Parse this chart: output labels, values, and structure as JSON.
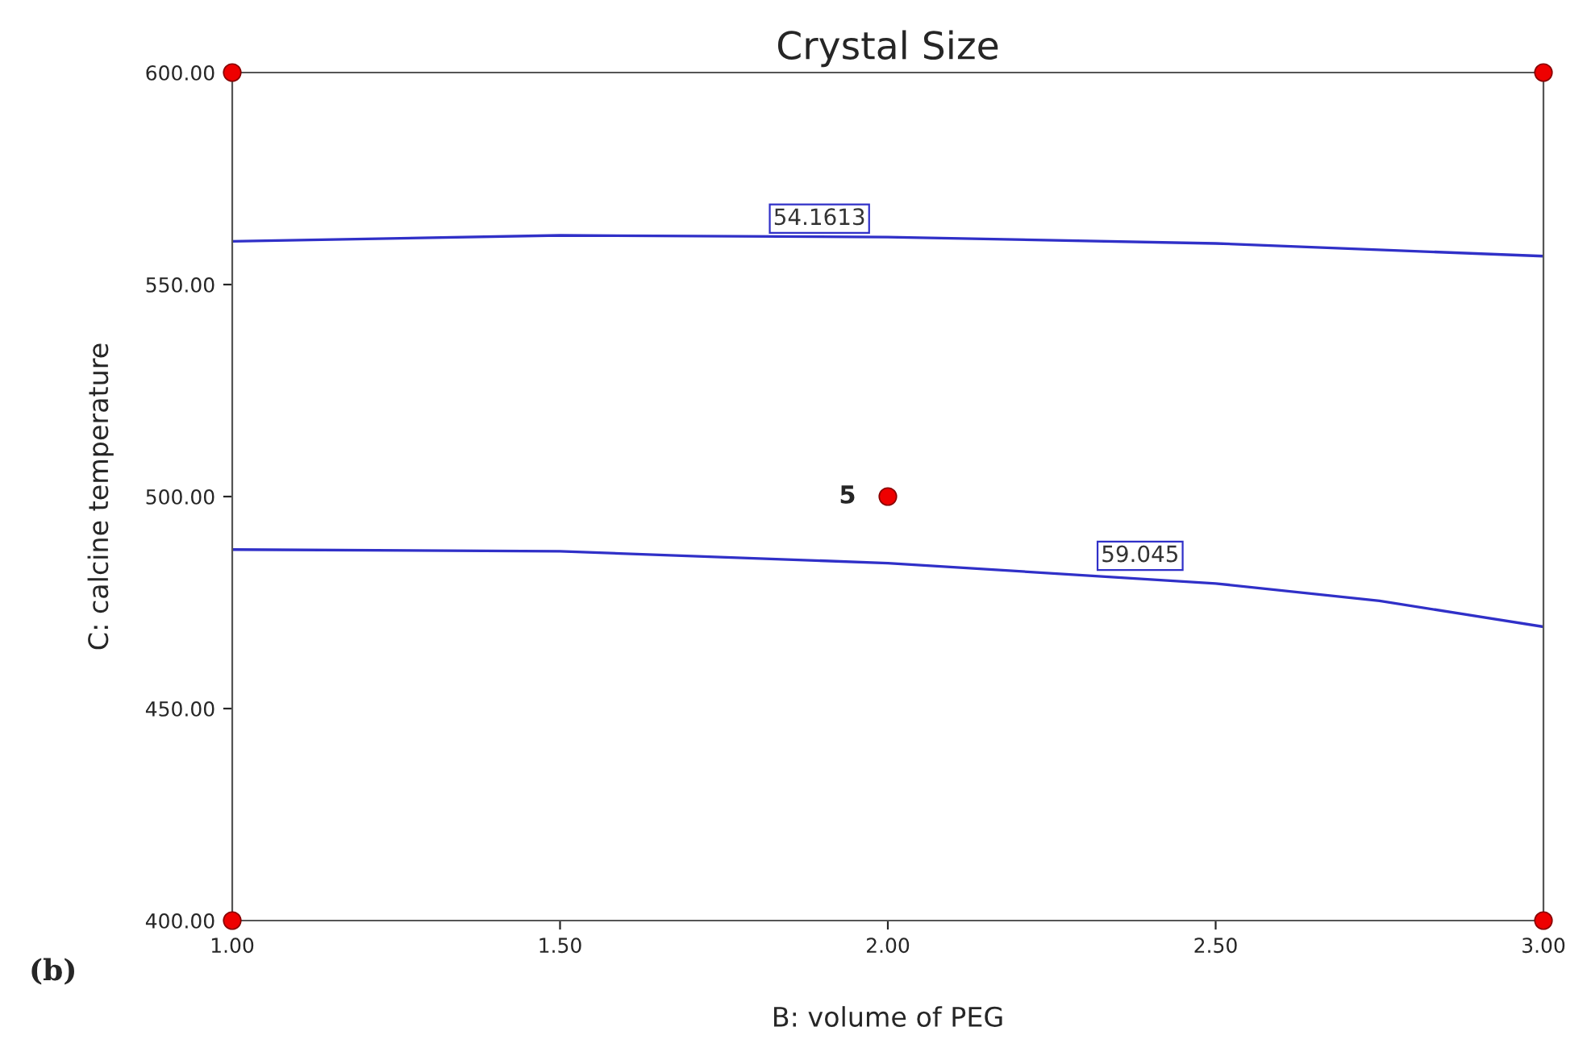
{
  "chart_data": {
    "type": "line",
    "title": "Crystal Size",
    "xlabel": "B: volume of PEG",
    "ylabel": "C: calcine temperature",
    "xlim": [
      1,
      3
    ],
    "ylim": [
      400,
      600
    ],
    "xticks": [
      {
        "value": 1,
        "label": "1.00"
      },
      {
        "value": 1.5,
        "label": "1.50"
      },
      {
        "value": 2,
        "label": "2.00"
      },
      {
        "value": 2.5,
        "label": "2.50"
      },
      {
        "value": 3,
        "label": "3.00"
      }
    ],
    "yticks": [
      {
        "value": 400,
        "label": "400.00"
      },
      {
        "value": 450,
        "label": "450.00"
      },
      {
        "value": 500,
        "label": "500.00"
      },
      {
        "value": 550,
        "label": "550.00"
      },
      {
        "value": 600,
        "label": "600.00"
      }
    ],
    "grid": false,
    "legend": false,
    "series": [
      {
        "name": "54.1613",
        "color": "#3030c8",
        "x": [
          1,
          1.5,
          2,
          2.5,
          3
        ],
        "values": [
          560.2,
          561.6,
          561.2,
          559.7,
          556.7
        ]
      },
      {
        "name": "59.045",
        "color": "#3030c8",
        "x": [
          1,
          1.5,
          2,
          2.5,
          2.75,
          3
        ],
        "values": [
          487.5,
          487.1,
          484.3,
          479.5,
          475.4,
          469.3
        ]
      },
      {
        "type": "scatter",
        "color": "#ee0000",
        "marker": "circle",
        "x": [
          1,
          1,
          3,
          3,
          2
        ],
        "values": [
          400,
          600,
          400,
          600,
          500
        ]
      }
    ],
    "annotations": [
      {
        "text": "5",
        "x": 2,
        "y": 500
      },
      "(b)"
    ]
  }
}
